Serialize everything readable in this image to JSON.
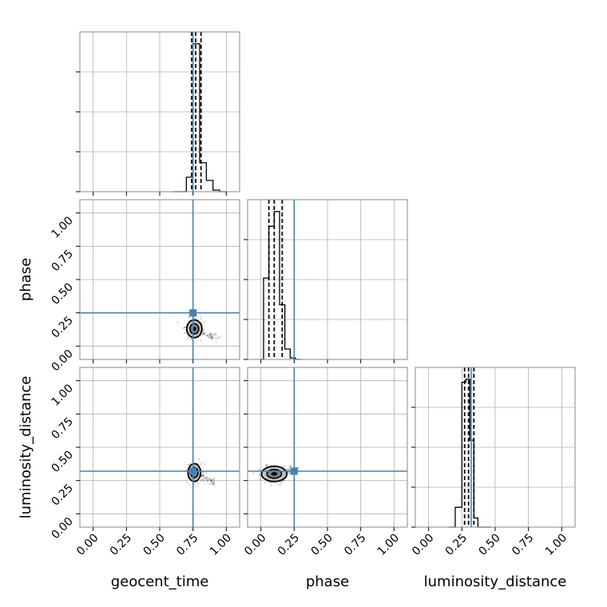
{
  "chart_data": {
    "type": "corner",
    "parameters": [
      "geocent_time",
      "phase",
      "luminosity_distance"
    ],
    "axis_labels": {
      "x": [
        "geocent_time",
        "phase",
        "luminosity_distance"
      ],
      "y": [
        "phase",
        "luminosity_distance"
      ]
    },
    "tick_values": [
      0.0,
      0.25,
      0.5,
      0.75,
      1.0
    ],
    "tick_labels": [
      "0.00",
      "0.25",
      "0.50",
      "0.75",
      "1.00"
    ],
    "axis_range": [
      -0.1,
      1.1
    ],
    "grid": true,
    "truths": {
      "geocent_time": 0.75,
      "phase": 0.25,
      "luminosity_distance": 0.32
    },
    "truth_color": "#4682b4",
    "histograms": [
      {
        "parameter": "geocent_time",
        "bin_edges": [
          0.6,
          0.7,
          0.75,
          0.8,
          0.85,
          0.9,
          0.95,
          1.0
        ],
        "density": [
          0.0,
          0.09,
          0.92,
          0.18,
          0.07,
          0.01,
          0.0
        ],
        "quantiles": [
          0.74,
          0.77,
          0.81
        ]
      },
      {
        "parameter": "phase",
        "bin_edges": [
          0.0,
          0.02,
          0.06,
          0.1,
          0.14,
          0.18,
          0.22,
          0.26,
          0.3
        ],
        "density": [
          0.0,
          0.55,
          0.9,
          1.0,
          0.37,
          0.07,
          0.01,
          0.0
        ],
        "quantiles": [
          0.06,
          0.1,
          0.16
        ]
      },
      {
        "parameter": "luminosity_distance",
        "bin_edges": [
          0.15,
          0.2,
          0.25,
          0.28,
          0.31,
          0.34,
          0.37,
          0.42,
          0.47
        ],
        "density": [
          0.0,
          0.13,
          0.95,
          0.97,
          0.57,
          0.06,
          0.0,
          0.0
        ],
        "quantiles": [
          0.27,
          0.3,
          0.34
        ]
      }
    ],
    "samples_2d": [
      {
        "x": "geocent_time",
        "y": "phase",
        "center": [
          0.76,
          0.13
        ],
        "spread": [
          0.03,
          0.035
        ],
        "tail": [
          0.95,
          0.05
        ]
      },
      {
        "x": "geocent_time",
        "y": "luminosity_distance",
        "center": [
          0.76,
          0.31
        ],
        "spread": [
          0.025,
          0.035
        ],
        "tail": [
          0.92,
          0.23
        ]
      },
      {
        "x": "phase",
        "y": "luminosity_distance",
        "center": [
          0.1,
          0.3
        ],
        "spread": [
          0.05,
          0.03
        ],
        "tail": [
          0.28,
          0.34
        ]
      }
    ],
    "colors": {
      "hist": "#000000",
      "contour_fill": "#bfbfbf",
      "grid": "#b0b0b0",
      "frame": "#888888"
    }
  }
}
